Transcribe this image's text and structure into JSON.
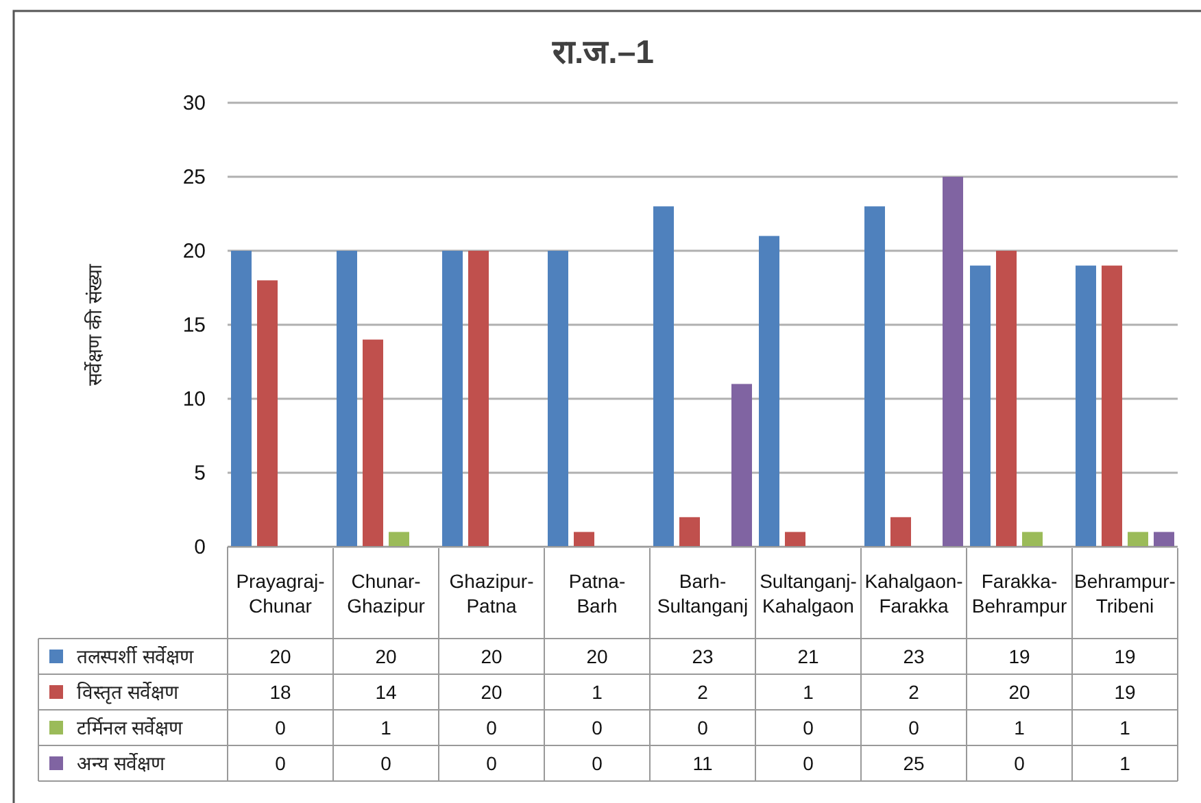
{
  "chart_data": {
    "type": "bar",
    "title": "रा.ज.–1",
    "ylabel": "सर्वेक्षण की संख्या",
    "categories": [
      "Prayagraj-Chunar",
      "Chunar-Ghazipur",
      "Ghazipur-Patna",
      "Patna-Barh",
      "Barh-Sultanganj",
      "Sultanganj-Kahalgaon",
      "Kahalgaon-Farakka",
      "Farakka-Behrampur",
      "Behrampur-Tribeni"
    ],
    "series": [
      {
        "name": "तलस्पर्शी सर्वेक्षण",
        "color": "#4f81bd",
        "values": [
          20,
          20,
          20,
          20,
          23,
          21,
          23,
          19,
          19
        ]
      },
      {
        "name": "विस्तृत सर्वेक्षण",
        "color": "#c0504d",
        "values": [
          18,
          14,
          20,
          1,
          2,
          1,
          2,
          20,
          19
        ]
      },
      {
        "name": "टर्मिनल सर्वेक्षण",
        "color": "#9bbb59",
        "values": [
          0,
          1,
          0,
          0,
          0,
          0,
          0,
          1,
          1
        ]
      },
      {
        "name": "अन्य सर्वेक्षण",
        "color": "#8064a2",
        "values": [
          0,
          0,
          0,
          0,
          11,
          0,
          25,
          0,
          1
        ]
      }
    ],
    "ylim": [
      0,
      30
    ],
    "yticks": [
      0,
      5,
      10,
      15,
      20,
      25,
      30
    ],
    "grid": "y",
    "data_labels": true,
    "legend": "bottom"
  }
}
